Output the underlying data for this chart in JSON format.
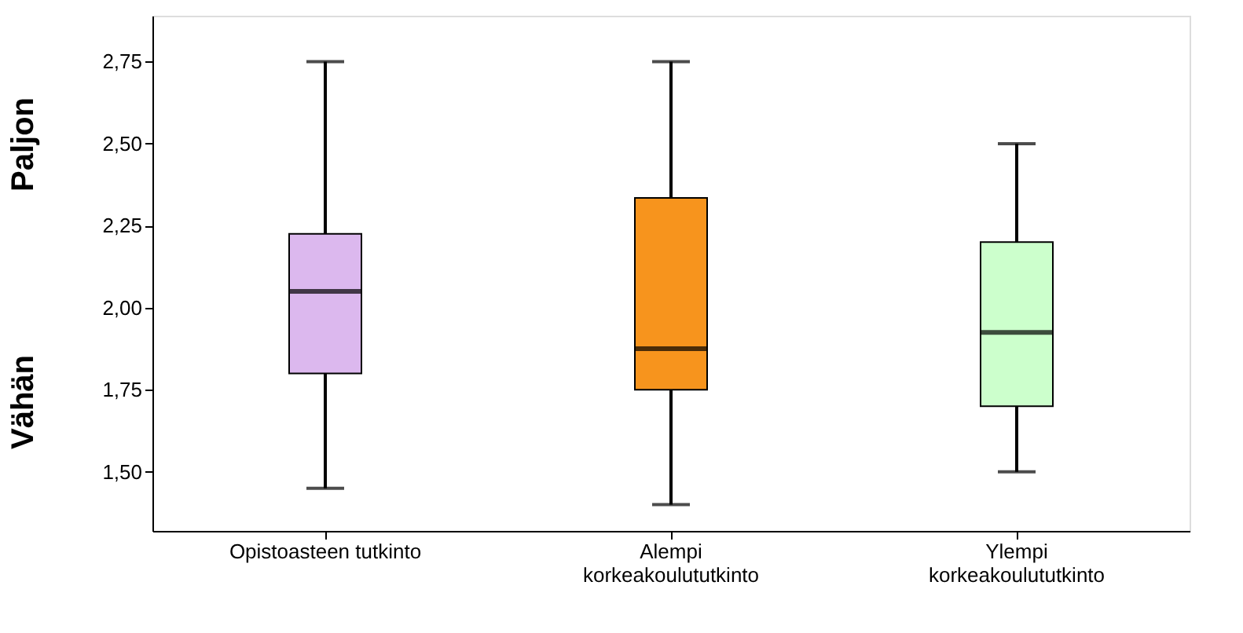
{
  "chart_data": {
    "type": "box",
    "categories": [
      "Opistoasteen tutkinto",
      "Alempi\nkorkeakoulututkinto",
      "Ylempi\nkorkeakoulututkinto"
    ],
    "boxes": [
      {
        "low": 1.45,
        "q1": 1.8,
        "median": 2.05,
        "q3": 2.225,
        "high": 2.75
      },
      {
        "low": 1.4,
        "q1": 1.75,
        "median": 1.875,
        "q3": 2.335,
        "high": 2.75
      },
      {
        "low": 1.5,
        "q1": 1.7,
        "median": 1.925,
        "q3": 2.2,
        "high": 2.5
      }
    ],
    "colors": [
      "#dcb8ee",
      "#f7941d",
      "#ccffcc"
    ],
    "ylim": [
      1.32,
      2.89
    ],
    "yticks": [
      {
        "value": 1.5,
        "label": "1,50"
      },
      {
        "value": 1.75,
        "label": "1,75"
      },
      {
        "value": 2.0,
        "label": "2,00"
      },
      {
        "value": 2.25,
        "label": "2,25"
      },
      {
        "value": 2.5,
        "label": "2,50"
      },
      {
        "value": 2.75,
        "label": "2,75"
      }
    ],
    "annotations": [
      "Paljon",
      "Vähän"
    ],
    "grid": false,
    "legend": false
  }
}
